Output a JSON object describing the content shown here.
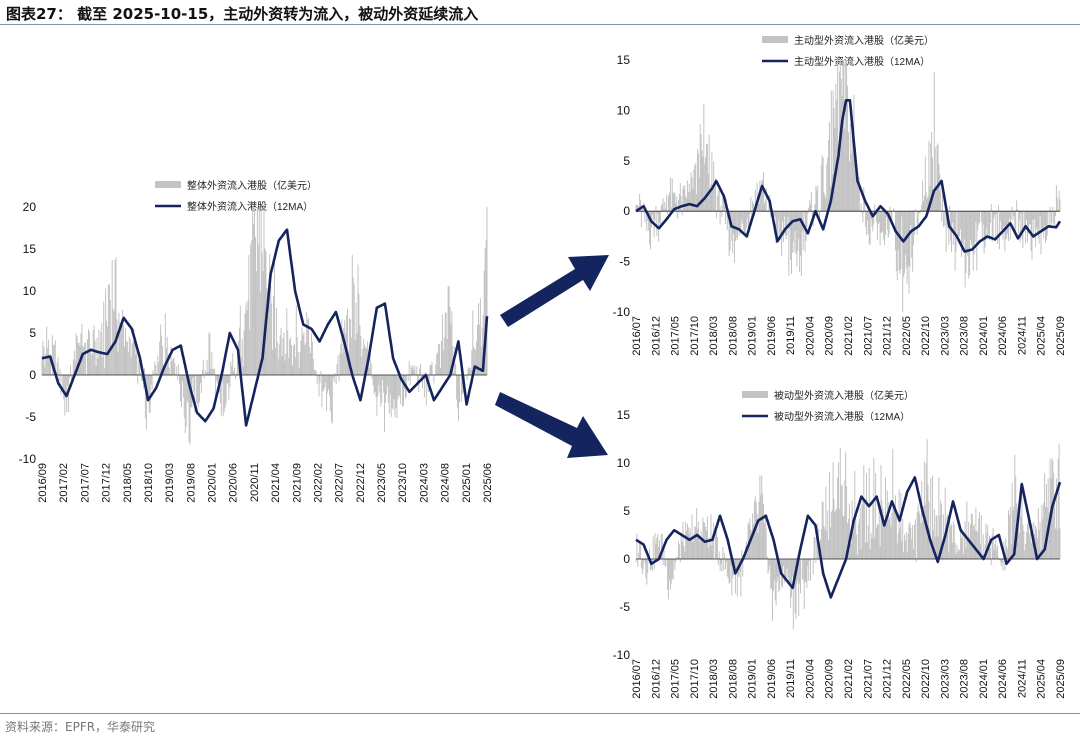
{
  "figure": {
    "title": "图表27：  截至 2025-10-15，主动外资转为流入，被动外资延续流入",
    "source": "资料来源：EPFR，华泰研究"
  },
  "colors": {
    "bar": "#c3c3c3",
    "line": "#14245e",
    "arrow": "#14245e",
    "rule": "#7f8fa6"
  },
  "chart_data": [
    {
      "id": "overall",
      "type": "bar",
      "legend": [
        "整体外资流入港股（亿美元）",
        "整体外资流入港股（12MA）"
      ],
      "legend_position": "top-center",
      "ylim": [
        -10,
        20
      ],
      "yticks": [
        -10,
        -5,
        0,
        5,
        10,
        15,
        20
      ],
      "x_start": "2016-09",
      "x_end": "2025-10",
      "xticks": [
        "2016/09",
        "2017/02",
        "2017/07",
        "2017/12",
        "2018/05",
        "2018/10",
        "2019/03",
        "2019/08",
        "2020/01",
        "2020/06",
        "2020/11",
        "2021/04",
        "2021/09",
        "2022/02",
        "2022/07",
        "2022/12",
        "2023/05",
        "2023/10",
        "2024/03",
        "2024/08",
        "2025/01",
        "2025/06"
      ],
      "bar_keypoints": [
        [
          "2016-09",
          4
        ],
        [
          "2016-12",
          3
        ],
        [
          "2017-03",
          -4
        ],
        [
          "2017-06",
          5
        ],
        [
          "2017-09",
          3
        ],
        [
          "2017-12",
          5
        ],
        [
          "2018-02",
          14
        ],
        [
          "2018-05",
          6
        ],
        [
          "2018-08",
          3
        ],
        [
          "2018-11",
          -5
        ],
        [
          "2019-02",
          5
        ],
        [
          "2019-05",
          4
        ],
        [
          "2019-08",
          -6
        ],
        [
          "2019-11",
          -4
        ],
        [
          "2020-02",
          4
        ],
        [
          "2020-05",
          -6
        ],
        [
          "2020-08",
          2
        ],
        [
          "2020-11",
          8
        ],
        [
          "2021-01",
          19
        ],
        [
          "2021-03",
          20
        ],
        [
          "2021-05",
          10
        ],
        [
          "2021-08",
          6
        ],
        [
          "2021-11",
          5
        ],
        [
          "2022-02",
          7
        ],
        [
          "2022-05",
          -2
        ],
        [
          "2022-08",
          -4
        ],
        [
          "2022-11",
          6
        ],
        [
          "2023-01",
          11
        ],
        [
          "2023-04",
          5
        ],
        [
          "2023-07",
          -3
        ],
        [
          "2023-10",
          -5
        ],
        [
          "2024-01",
          -3
        ],
        [
          "2024-04",
          1
        ],
        [
          "2024-07",
          -2
        ],
        [
          "2024-10",
          2
        ],
        [
          "2025-01",
          9
        ],
        [
          "2025-03",
          -5
        ],
        [
          "2025-06",
          3
        ],
        [
          "2025-08",
          10
        ],
        [
          "2025-10",
          14
        ]
      ],
      "ma_keypoints": [
        [
          "2016-09",
          2
        ],
        [
          "2016-11",
          2.2
        ],
        [
          "2017-01",
          -1
        ],
        [
          "2017-03",
          -2.5
        ],
        [
          "2017-05",
          0
        ],
        [
          "2017-07",
          2.5
        ],
        [
          "2017-09",
          3
        ],
        [
          "2017-11",
          2.7
        ],
        [
          "2018-01",
          2.5
        ],
        [
          "2018-03",
          4
        ],
        [
          "2018-05",
          6.8
        ],
        [
          "2018-07",
          5.5
        ],
        [
          "2018-09",
          2
        ],
        [
          "2018-11",
          -3
        ],
        [
          "2019-01",
          -1.5
        ],
        [
          "2019-03",
          1
        ],
        [
          "2019-05",
          3
        ],
        [
          "2019-07",
          3.5
        ],
        [
          "2019-09",
          -1
        ],
        [
          "2019-11",
          -4.5
        ],
        [
          "2020-01",
          -5.5
        ],
        [
          "2020-03",
          -4
        ],
        [
          "2020-05",
          0
        ],
        [
          "2020-07",
          5
        ],
        [
          "2020-09",
          3
        ],
        [
          "2020-11",
          -6
        ],
        [
          "2021-01",
          -2
        ],
        [
          "2021-03",
          2
        ],
        [
          "2021-05",
          12
        ],
        [
          "2021-07",
          16
        ],
        [
          "2021-09",
          17.3
        ],
        [
          "2021-11",
          10
        ],
        [
          "2022-01",
          6
        ],
        [
          "2022-03",
          5.5
        ],
        [
          "2022-05",
          4
        ],
        [
          "2022-07",
          6
        ],
        [
          "2022-09",
          7.5
        ],
        [
          "2022-11",
          4
        ],
        [
          "2023-01",
          0
        ],
        [
          "2023-03",
          -3
        ],
        [
          "2023-05",
          2
        ],
        [
          "2023-07",
          8
        ],
        [
          "2023-09",
          8.5
        ],
        [
          "2023-11",
          2
        ],
        [
          "2024-01",
          -0.5
        ],
        [
          "2024-03",
          -2
        ],
        [
          "2024-05",
          -1
        ],
        [
          "2024-07",
          0
        ],
        [
          "2024-09",
          -3
        ],
        [
          "2024-11",
          -1.5
        ],
        [
          "2025-01",
          0
        ],
        [
          "2025-03",
          4
        ],
        [
          "2025-05",
          -3.5
        ],
        [
          "2025-07",
          1
        ],
        [
          "2025-09",
          0.5
        ],
        [
          "2025-10",
          7
        ]
      ]
    },
    {
      "id": "active",
      "type": "bar",
      "legend": [
        "主动型外资流入港股（亿美元）",
        "主动型外资流入港股（12MA）"
      ],
      "legend_position": "top-center",
      "ylim": [
        -10,
        15
      ],
      "yticks": [
        -10,
        -5,
        0,
        5,
        10,
        15
      ],
      "x_start": "2016-07",
      "x_end": "2025-10",
      "xticks": [
        "2016/07",
        "2016/12",
        "2017/05",
        "2017/10",
        "2018/03",
        "2018/08",
        "2019/01",
        "2019/06",
        "2019/11",
        "2020/04",
        "2020/09",
        "2021/02",
        "2021/07",
        "2021/12",
        "2022/05",
        "2022/10",
        "2023/03",
        "2023/08",
        "2024/01",
        "2024/06",
        "2024/11",
        "2025/04",
        "2025/09"
      ],
      "bar_keypoints": [
        [
          "2016-07",
          1
        ],
        [
          "2016-10",
          -2
        ],
        [
          "2017-01",
          -1
        ],
        [
          "2017-04",
          2
        ],
        [
          "2017-07",
          1
        ],
        [
          "2017-10",
          3
        ],
        [
          "2018-01",
          7
        ],
        [
          "2018-04",
          2
        ],
        [
          "2018-07",
          -2
        ],
        [
          "2018-10",
          -4
        ],
        [
          "2019-01",
          1
        ],
        [
          "2019-04",
          4
        ],
        [
          "2019-07",
          -2
        ],
        [
          "2019-10",
          -3
        ],
        [
          "2020-01",
          -6
        ],
        [
          "2020-04",
          -1
        ],
        [
          "2020-07",
          2
        ],
        [
          "2020-10",
          7
        ],
        [
          "2020-12",
          15
        ],
        [
          "2021-02",
          14
        ],
        [
          "2021-05",
          4
        ],
        [
          "2021-08",
          -2
        ],
        [
          "2021-11",
          -3
        ],
        [
          "2022-02",
          -1
        ],
        [
          "2022-05",
          -8
        ],
        [
          "2022-08",
          -3
        ],
        [
          "2022-11",
          4
        ],
        [
          "2023-01",
          9
        ],
        [
          "2023-04",
          -2
        ],
        [
          "2023-07",
          -4
        ],
        [
          "2023-10",
          -5
        ],
        [
          "2024-01",
          -3
        ],
        [
          "2024-04",
          -2
        ],
        [
          "2024-07",
          -3
        ],
        [
          "2024-10",
          -1
        ],
        [
          "2025-01",
          -2
        ],
        [
          "2025-04",
          -3
        ],
        [
          "2025-07",
          -2
        ],
        [
          "2025-09",
          1
        ]
      ],
      "ma_keypoints": [
        [
          "2016-07",
          0
        ],
        [
          "2016-09",
          0.5
        ],
        [
          "2016-11",
          -1
        ],
        [
          "2017-01",
          -1.7
        ],
        [
          "2017-03",
          -0.8
        ],
        [
          "2017-05",
          0.2
        ],
        [
          "2017-07",
          0.5
        ],
        [
          "2017-09",
          0.7
        ],
        [
          "2017-11",
          0.5
        ],
        [
          "2018-01",
          1.3
        ],
        [
          "2018-03",
          2.3
        ],
        [
          "2018-04",
          3
        ],
        [
          "2018-06",
          1.5
        ],
        [
          "2018-08",
          -1.5
        ],
        [
          "2018-10",
          -1.8
        ],
        [
          "2018-12",
          -2.5
        ],
        [
          "2019-02",
          0
        ],
        [
          "2019-04",
          2.5
        ],
        [
          "2019-06",
          1
        ],
        [
          "2019-08",
          -3
        ],
        [
          "2019-10",
          -1.8
        ],
        [
          "2019-12",
          -1
        ],
        [
          "2020-02",
          -0.8
        ],
        [
          "2020-04",
          -2.2
        ],
        [
          "2020-06",
          0
        ],
        [
          "2020-08",
          -1.8
        ],
        [
          "2020-10",
          1
        ],
        [
          "2020-12",
          5.5
        ],
        [
          "2021-01",
          9
        ],
        [
          "2021-02",
          11
        ],
        [
          "2021-03",
          11
        ],
        [
          "2021-05",
          3
        ],
        [
          "2021-07",
          1
        ],
        [
          "2021-09",
          -0.5
        ],
        [
          "2021-11",
          0.5
        ],
        [
          "2022-01",
          -0.3
        ],
        [
          "2022-03",
          -2
        ],
        [
          "2022-05",
          -3
        ],
        [
          "2022-07",
          -2
        ],
        [
          "2022-09",
          -1.5
        ],
        [
          "2022-11",
          -0.5
        ],
        [
          "2023-01",
          2
        ],
        [
          "2023-03",
          3
        ],
        [
          "2023-05",
          -1.5
        ],
        [
          "2023-07",
          -2.5
        ],
        [
          "2023-09",
          -4
        ],
        [
          "2023-11",
          -3.8
        ],
        [
          "2024-01",
          -3
        ],
        [
          "2024-03",
          -2.5
        ],
        [
          "2024-05",
          -2.8
        ],
        [
          "2024-07",
          -2
        ],
        [
          "2024-09",
          -1.2
        ],
        [
          "2024-11",
          -2.7
        ],
        [
          "2025-01",
          -1.5
        ],
        [
          "2025-03",
          -2.5
        ],
        [
          "2025-05",
          -2
        ],
        [
          "2025-07",
          -1.5
        ],
        [
          "2025-09",
          -1.6
        ],
        [
          "2025-10",
          -1
        ]
      ]
    },
    {
      "id": "passive",
      "type": "bar",
      "legend": [
        "被动型外资流入港股（亿美元）",
        "被动型外资流入港股（12MA）"
      ],
      "legend_position": "top-center",
      "ylim": [
        -10,
        15
      ],
      "yticks": [
        -10,
        -5,
        0,
        5,
        10,
        15
      ],
      "x_start": "2016-07",
      "x_end": "2025-10",
      "xticks": [
        "2016/07",
        "2016/12",
        "2017/05",
        "2017/10",
        "2018/03",
        "2018/08",
        "2019/01",
        "2019/06",
        "2019/11",
        "2020/04",
        "2020/09",
        "2021/02",
        "2021/07",
        "2021/12",
        "2022/05",
        "2022/10",
        "2023/03",
        "2023/08",
        "2024/01",
        "2024/06",
        "2024/11",
        "2025/04",
        "2025/09"
      ],
      "bar_keypoints": [
        [
          "2016-07",
          2
        ],
        [
          "2016-10",
          -1
        ],
        [
          "2017-01",
          3
        ],
        [
          "2017-04",
          -3
        ],
        [
          "2017-07",
          2
        ],
        [
          "2017-10",
          3
        ],
        [
          "2018-01",
          4
        ],
        [
          "2018-04",
          2
        ],
        [
          "2018-07",
          -2
        ],
        [
          "2018-10",
          -3
        ],
        [
          "2019-01",
          3
        ],
        [
          "2019-04",
          6
        ],
        [
          "2019-07",
          -5
        ],
        [
          "2019-10",
          -2
        ],
        [
          "2020-01",
          -6
        ],
        [
          "2020-04",
          -2
        ],
        [
          "2020-07",
          3
        ],
        [
          "2020-10",
          6
        ],
        [
          "2020-12",
          7
        ],
        [
          "2021-02",
          8
        ],
        [
          "2021-05",
          5
        ],
        [
          "2021-08",
          7
        ],
        [
          "2021-11",
          6
        ],
        [
          "2022-02",
          9
        ],
        [
          "2022-05",
          3
        ],
        [
          "2022-08",
          2
        ],
        [
          "2022-11",
          8
        ],
        [
          "2023-01",
          6
        ],
        [
          "2023-04",
          5
        ],
        [
          "2023-07",
          2
        ],
        [
          "2023-10",
          4
        ],
        [
          "2024-01",
          3
        ],
        [
          "2024-04",
          2
        ],
        [
          "2024-07",
          -1
        ],
        [
          "2024-10",
          8
        ],
        [
          "2025-01",
          3
        ],
        [
          "2025-04",
          4
        ],
        [
          "2025-07",
          9
        ],
        [
          "2025-09",
          10
        ]
      ],
      "ma_keypoints": [
        [
          "2016-07",
          2
        ],
        [
          "2016-09",
          1.5
        ],
        [
          "2016-11",
          -0.5
        ],
        [
          "2017-01",
          0
        ],
        [
          "2017-03",
          2
        ],
        [
          "2017-05",
          3
        ],
        [
          "2017-07",
          2.5
        ],
        [
          "2017-09",
          2
        ],
        [
          "2017-11",
          2.5
        ],
        [
          "2018-01",
          1.8
        ],
        [
          "2018-03",
          2
        ],
        [
          "2018-05",
          4.5
        ],
        [
          "2018-07",
          2
        ],
        [
          "2018-09",
          -1.5
        ],
        [
          "2018-11",
          0
        ],
        [
          "2019-01",
          2
        ],
        [
          "2019-03",
          4
        ],
        [
          "2019-05",
          4.5
        ],
        [
          "2019-07",
          2
        ],
        [
          "2019-09",
          -1.5
        ],
        [
          "2019-11",
          -2.5
        ],
        [
          "2019-12",
          -3
        ],
        [
          "2020-02",
          1
        ],
        [
          "2020-04",
          4.5
        ],
        [
          "2020-06",
          3.5
        ],
        [
          "2020-08",
          -1.5
        ],
        [
          "2020-10",
          -4
        ],
        [
          "2020-12",
          -2
        ],
        [
          "2021-02",
          0
        ],
        [
          "2021-04",
          4
        ],
        [
          "2021-06",
          6.5
        ],
        [
          "2021-08",
          5.5
        ],
        [
          "2021-10",
          6.5
        ],
        [
          "2021-12",
          3.5
        ],
        [
          "2022-02",
          6
        ],
        [
          "2022-04",
          4
        ],
        [
          "2022-06",
          7
        ],
        [
          "2022-08",
          8.5
        ],
        [
          "2022-10",
          5
        ],
        [
          "2022-12",
          2
        ],
        [
          "2023-02",
          -0.3
        ],
        [
          "2023-04",
          2.5
        ],
        [
          "2023-06",
          6
        ],
        [
          "2023-08",
          3
        ],
        [
          "2023-10",
          2
        ],
        [
          "2023-12",
          1
        ],
        [
          "2024-02",
          0
        ],
        [
          "2024-04",
          2
        ],
        [
          "2024-06",
          2.5
        ],
        [
          "2024-08",
          -0.5
        ],
        [
          "2024-10",
          0.5
        ],
        [
          "2024-12",
          7.8
        ],
        [
          "2025-02",
          4
        ],
        [
          "2025-04",
          0
        ],
        [
          "2025-06",
          1
        ],
        [
          "2025-08",
          5.5
        ],
        [
          "2025-10",
          8
        ]
      ]
    }
  ]
}
